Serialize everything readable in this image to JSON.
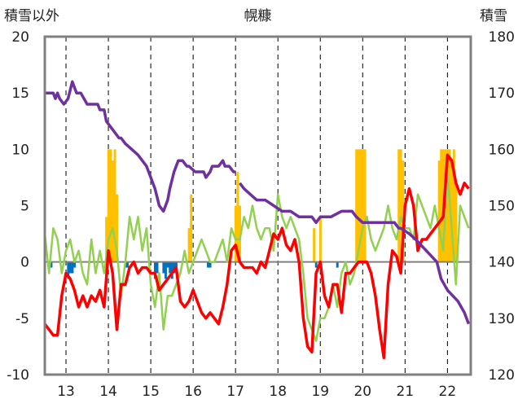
{
  "chart_data": {
    "type": "line",
    "title": "幌糠",
    "y_left_label": "積雪以外",
    "y_right_label": "積雪",
    "y_left_lim": [
      -10,
      20
    ],
    "y_left_ticks": [
      "20",
      "15",
      "10",
      "5",
      "0",
      "-5",
      "-10"
    ],
    "y_right_lim": [
      120,
      180
    ],
    "y_right_ticks": [
      "180",
      "170",
      "160",
      "150",
      "140",
      "130",
      "120"
    ],
    "x_lim": [
      12.5,
      22.55
    ],
    "x_ticks": [
      "13",
      "14",
      "15",
      "16",
      "17",
      "18",
      "19",
      "20",
      "21",
      "22"
    ],
    "grid": {
      "vertical_dashed": true,
      "horizontal": false
    },
    "colors": {
      "snow": "#7030A0",
      "temperature": "#FF0000",
      "green_series": "#92D050",
      "orange_bars": "#FFC000",
      "blue_bars": "#0070C0",
      "zero_line": "#808080",
      "frame": "#808080"
    },
    "snow_depth": {
      "axis": "right",
      "x": [
        12.5,
        12.7,
        12.75,
        12.8,
        12.85,
        12.95,
        13.05,
        13.15,
        13.2,
        13.25,
        13.35,
        13.5,
        13.75,
        13.8,
        13.9,
        13.95,
        14.05,
        14.15,
        14.25,
        14.3,
        14.4,
        14.55,
        14.7,
        14.9,
        15.0,
        15.1,
        15.2,
        15.3,
        15.4,
        15.45,
        15.55,
        15.65,
        15.75,
        15.85,
        15.9,
        16.05,
        16.25,
        16.3,
        16.4,
        16.45,
        16.6,
        16.7,
        16.75,
        16.85,
        16.95,
        17.0,
        17.1,
        17.2,
        17.35,
        17.5,
        17.7,
        17.9,
        18.1,
        18.3,
        18.5,
        18.7,
        18.8,
        18.9,
        19.0,
        19.1,
        19.25,
        19.5,
        19.75,
        19.85,
        20.0,
        20.25,
        20.5,
        20.75,
        20.85,
        20.9,
        21.1,
        21.25,
        21.5,
        21.75,
        21.85,
        22.0,
        22.25,
        22.4,
        22.5
      ],
      "y": [
        170,
        170,
        169,
        170,
        169,
        168,
        169,
        172,
        171,
        170,
        170,
        168,
        168,
        167,
        167,
        165,
        164,
        163,
        162,
        162,
        161,
        160,
        159,
        157,
        155,
        153,
        150,
        149,
        151,
        153,
        156,
        158,
        158,
        157,
        157,
        156,
        156,
        155,
        156,
        157,
        157,
        158,
        157,
        157,
        156,
        156,
        154,
        153,
        152,
        151,
        151,
        150,
        149,
        149,
        148,
        148,
        148,
        147,
        148,
        148,
        148,
        149,
        149,
        148,
        147,
        147,
        147,
        147,
        146,
        146,
        145,
        144,
        142,
        140,
        137,
        135,
        133,
        131,
        129
      ],
      "gaps_after_index": [
        45
      ]
    },
    "temperature": {
      "axis": "left",
      "x": [
        12.5,
        12.6,
        12.7,
        12.8,
        12.9,
        13.0,
        13.1,
        13.2,
        13.3,
        13.4,
        13.5,
        13.6,
        13.7,
        13.8,
        13.9,
        14.0,
        14.1,
        14.2,
        14.3,
        14.4,
        14.5,
        14.6,
        14.7,
        14.8,
        14.9,
        15.0,
        15.1,
        15.2,
        15.3,
        15.4,
        15.5,
        15.6,
        15.7,
        15.8,
        15.9,
        16.0,
        16.1,
        16.2,
        16.3,
        16.4,
        16.5,
        16.6,
        16.7,
        16.8,
        16.9,
        17.0,
        17.1,
        17.2,
        17.3,
        17.4,
        17.5,
        17.6,
        17.7,
        17.8,
        17.9,
        18.0,
        18.1,
        18.2,
        18.3,
        18.4,
        18.5,
        18.6,
        18.7,
        18.8,
        18.9,
        19.0,
        19.1,
        19.2,
        19.3,
        19.4,
        19.5,
        19.6,
        19.7,
        19.8,
        19.9,
        20.0,
        20.1,
        20.2,
        20.3,
        20.4,
        20.5,
        20.6,
        20.7,
        20.8,
        20.9,
        21.0,
        21.1,
        21.2,
        21.3,
        21.4,
        21.5,
        21.6,
        21.7,
        21.8,
        21.9,
        22.0,
        22.1,
        22.2,
        22.3,
        22.4,
        22.5
      ],
      "y": [
        -5.5,
        -6,
        -6.5,
        -6.5,
        -3,
        -1,
        -1.5,
        -2.5,
        -4,
        -3,
        -4,
        -3,
        -3.5,
        -2.5,
        -4,
        1,
        -1,
        -6,
        -2,
        -2,
        -0.5,
        0,
        -1,
        -0.5,
        -0.5,
        -1,
        -1,
        -2.5,
        -2,
        -1.5,
        -1,
        -0.5,
        -3.5,
        -4,
        -3.5,
        -2.5,
        -3.5,
        -4.5,
        -5,
        -4.5,
        -5,
        -5.5,
        -4,
        -2,
        1,
        1.5,
        0,
        -0.5,
        -0.5,
        -0.5,
        -1,
        0,
        -0.5,
        1,
        2.5,
        2,
        3,
        1.5,
        1,
        2,
        0,
        -5,
        -7.5,
        -8,
        -1,
        0,
        -3,
        -4,
        -2,
        -2,
        -4.5,
        -1,
        -1,
        -0.5,
        0,
        0,
        0,
        -1,
        -3,
        -6,
        -8.5,
        -2,
        1,
        0.5,
        -1,
        5,
        6.5,
        5,
        1,
        2,
        2,
        2.5,
        3,
        3.5,
        4,
        9.5,
        9,
        7,
        6,
        7,
        6.5
      ]
    },
    "green_series": {
      "axis": "left",
      "x": [
        12.5,
        12.6,
        12.7,
        12.8,
        12.9,
        13.0,
        13.1,
        13.2,
        13.3,
        13.4,
        13.5,
        13.6,
        13.7,
        13.8,
        13.9,
        14.0,
        14.1,
        14.2,
        14.3,
        14.4,
        14.5,
        14.6,
        14.7,
        14.8,
        14.9,
        15.0,
        15.1,
        15.2,
        15.3,
        15.4,
        15.5,
        15.6,
        15.7,
        15.8,
        15.9,
        16.0,
        16.1,
        16.2,
        16.3,
        16.4,
        16.5,
        16.6,
        16.7,
        16.8,
        16.9,
        17.0,
        17.1,
        17.2,
        17.3,
        17.4,
        17.5,
        17.6,
        17.7,
        17.8,
        17.9,
        18.0,
        18.1,
        18.2,
        18.3,
        18.4,
        18.5,
        18.6,
        18.7,
        18.8,
        18.9,
        19.0,
        19.1,
        19.2,
        19.3,
        19.4,
        19.5,
        19.6,
        19.7,
        19.8,
        19.9,
        20.0,
        20.1,
        20.2,
        20.3,
        20.4,
        20.5,
        20.6,
        20.7,
        20.8,
        20.9,
        21.0,
        21.1,
        21.2,
        21.3,
        21.4,
        21.5,
        21.6,
        21.7,
        21.8,
        21.9,
        22.0,
        22.1,
        22.2,
        22.3,
        22.4,
        22.5
      ],
      "y": [
        2.5,
        -1,
        3,
        2,
        -1,
        1,
        2,
        0,
        1,
        -1,
        -2,
        2,
        -1,
        1,
        -1,
        2,
        3,
        1,
        -3,
        0,
        4,
        2,
        4,
        1,
        3,
        -2,
        -4,
        -1,
        -6,
        -3,
        -3,
        -2,
        -1,
        1,
        -1,
        0,
        1,
        2,
        1,
        0,
        0,
        1,
        2,
        0,
        3,
        2,
        2,
        4,
        3,
        5,
        3,
        2,
        3,
        3,
        1,
        6,
        4,
        3,
        4,
        3,
        2,
        -1,
        -5,
        -6,
        -7,
        -5,
        -5,
        -4,
        -2,
        -4,
        -1,
        0,
        -2,
        -1,
        1,
        3,
        4,
        2,
        1,
        2,
        3,
        5,
        3,
        2,
        4,
        3,
        3,
        2,
        6,
        5,
        4,
        3,
        5,
        3,
        1,
        8,
        3,
        -2,
        5,
        4,
        3
      ]
    },
    "orange_bars": {
      "axis": "left",
      "x": [
        13.95,
        14.0,
        14.05,
        14.1,
        14.15,
        14.2,
        15.9,
        15.95,
        17.0,
        17.05,
        17.1,
        18.85,
        19.0,
        19.85,
        19.9,
        19.95,
        20.0,
        20.05,
        20.85,
        20.9,
        20.95,
        21.8,
        21.85,
        21.9,
        21.95,
        22.0,
        22.05,
        22.1,
        22.15,
        22.2
      ],
      "y": [
        4,
        10,
        10,
        9,
        10,
        6,
        3,
        6,
        5,
        8,
        5,
        3,
        4,
        10,
        10,
        10,
        10,
        10,
        10,
        10,
        9,
        9,
        10,
        10,
        10,
        10,
        10,
        9,
        10,
        7
      ]
    },
    "blue_bars": {
      "axis": "left",
      "x": [
        12.6,
        12.65,
        13.05,
        13.1,
        13.15,
        13.2,
        14.4,
        14.45,
        15.1,
        15.15,
        15.3,
        15.35,
        15.4,
        15.45,
        15.5,
        15.55,
        15.6,
        16.35,
        16.4,
        18.9,
        19.4
      ],
      "y": [
        -0.5,
        -0.5,
        -1.5,
        -1,
        -1,
        -0.5,
        -0.5,
        -0.5,
        -1.5,
        -1,
        -1,
        -1.5,
        -0.5,
        -1,
        -1.5,
        -1,
        -0.5,
        -0.5,
        -0.5,
        -0.5,
        -0.5
      ]
    }
  }
}
